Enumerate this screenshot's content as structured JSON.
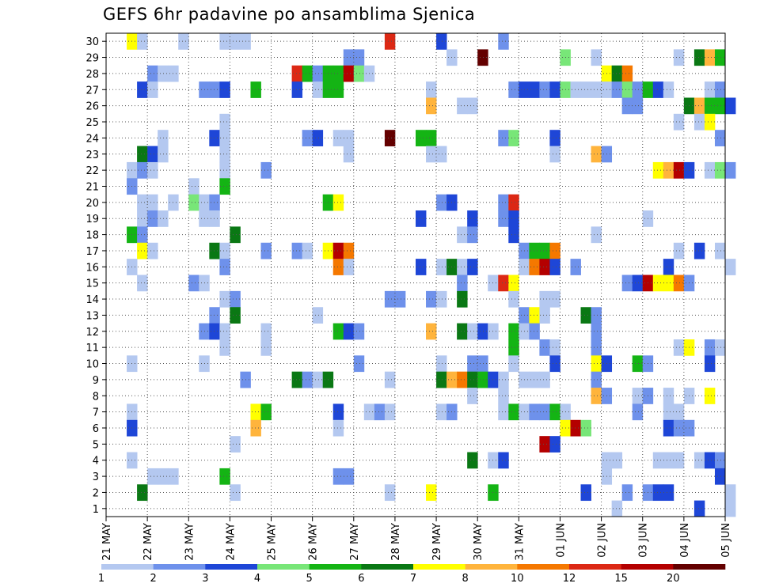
{
  "chart_data": {
    "type": "heatmap",
    "title": "GEFS 6hr padavine po ansamblima Sjenica",
    "xlabel": "",
    "ylabel": "",
    "x_ticks": [
      "21 MAY",
      "22 MAY",
      "23 MAY",
      "24 MAY",
      "25 MAY",
      "26 MAY",
      "27 MAY",
      "28 MAY",
      "29 MAY",
      "30 MAY",
      "31 MAY",
      "01 JUN",
      "02 JUN",
      "03 JUN",
      "04 JUN",
      "05 JUN"
    ],
    "y_ticks": [
      1,
      2,
      3,
      4,
      5,
      6,
      7,
      8,
      9,
      10,
      11,
      12,
      13,
      14,
      15,
      16,
      17,
      18,
      19,
      20,
      21,
      22,
      23,
      24,
      25,
      26,
      27,
      28,
      29,
      30
    ],
    "x_range_days": [
      0,
      15
    ],
    "y_range": [
      0,
      30
    ],
    "grid": true,
    "legend": {
      "placement": "bottom",
      "labels": [
        "1",
        "2",
        "3",
        "4",
        "5",
        "6",
        "7",
        "8",
        "10",
        "12",
        "15",
        "20"
      ],
      "colors": [
        "#b4c8f0",
        "#6e91eb",
        "#1e46d7",
        "#78e678",
        "#14b414",
        "#0a7814",
        "#ffff00",
        "#ffb43c",
        "#f57800",
        "#dc2814",
        "#b40000",
        "#640000"
      ]
    },
    "cells_note": "each cell: [member, lead_step_6h (step 0 = 21 MAY 00Z), color_class (0-11, per legend)]",
    "cells": [
      [
        30,
        2,
        6
      ],
      [
        30,
        3,
        0
      ],
      [
        30,
        7,
        0
      ],
      [
        30,
        11,
        0
      ],
      [
        30,
        12,
        0
      ],
      [
        30,
        13,
        0
      ],
      [
        30,
        27,
        9
      ],
      [
        30,
        32,
        2
      ],
      [
        30,
        38,
        1
      ],
      [
        29,
        23,
        1
      ],
      [
        29,
        24,
        1
      ],
      [
        29,
        33,
        0
      ],
      [
        29,
        36,
        11
      ],
      [
        29,
        44,
        3
      ],
      [
        29,
        47,
        0
      ],
      [
        29,
        55,
        0
      ],
      [
        29,
        57,
        5
      ],
      [
        29,
        58,
        7
      ],
      [
        29,
        59,
        4
      ],
      [
        28,
        4,
        1
      ],
      [
        28,
        5,
        0
      ],
      [
        28,
        6,
        0
      ],
      [
        28,
        18,
        9
      ],
      [
        28,
        19,
        4
      ],
      [
        28,
        20,
        1
      ],
      [
        28,
        21,
        4
      ],
      [
        28,
        22,
        4
      ],
      [
        28,
        23,
        10
      ],
      [
        28,
        24,
        3
      ],
      [
        28,
        25,
        0
      ],
      [
        28,
        48,
        6
      ],
      [
        28,
        49,
        5
      ],
      [
        28,
        50,
        8
      ],
      [
        27,
        3,
        2
      ],
      [
        27,
        4,
        0
      ],
      [
        27,
        9,
        1
      ],
      [
        27,
        10,
        1
      ],
      [
        27,
        11,
        2
      ],
      [
        27,
        14,
        4
      ],
      [
        27,
        18,
        2
      ],
      [
        27,
        20,
        0
      ],
      [
        27,
        21,
        4
      ],
      [
        27,
        22,
        4
      ],
      [
        27,
        31,
        0
      ],
      [
        27,
        39,
        1
      ],
      [
        27,
        40,
        2
      ],
      [
        27,
        41,
        2
      ],
      [
        27,
        42,
        1
      ],
      [
        27,
        43,
        2
      ],
      [
        27,
        44,
        3
      ],
      [
        27,
        45,
        0
      ],
      [
        27,
        46,
        0
      ],
      [
        27,
        47,
        0
      ],
      [
        27,
        48,
        0
      ],
      [
        27,
        49,
        1
      ],
      [
        27,
        50,
        3
      ],
      [
        27,
        51,
        1
      ],
      [
        27,
        52,
        4
      ],
      [
        27,
        53,
        2
      ],
      [
        27,
        54,
        0
      ],
      [
        27,
        58,
        0
      ],
      [
        27,
        59,
        1
      ],
      [
        26,
        31,
        7
      ],
      [
        26,
        34,
        0
      ],
      [
        26,
        35,
        0
      ],
      [
        26,
        50,
        1
      ],
      [
        26,
        51,
        1
      ],
      [
        26,
        56,
        5
      ],
      [
        26,
        57,
        7
      ],
      [
        26,
        58,
        4
      ],
      [
        26,
        59,
        4
      ],
      [
        26,
        60,
        2
      ],
      [
        25,
        11,
        0
      ],
      [
        25,
        55,
        0
      ],
      [
        25,
        57,
        0
      ],
      [
        25,
        58,
        6
      ],
      [
        24,
        5,
        0
      ],
      [
        24,
        10,
        2
      ],
      [
        24,
        11,
        0
      ],
      [
        24,
        19,
        1
      ],
      [
        24,
        20,
        2
      ],
      [
        24,
        22,
        0
      ],
      [
        24,
        23,
        0
      ],
      [
        24,
        27,
        11
      ],
      [
        24,
        30,
        4
      ],
      [
        24,
        31,
        4
      ],
      [
        24,
        38,
        1
      ],
      [
        24,
        39,
        3
      ],
      [
        24,
        43,
        2
      ],
      [
        24,
        59,
        1
      ],
      [
        23,
        3,
        5
      ],
      [
        23,
        4,
        2
      ],
      [
        23,
        5,
        0
      ],
      [
        23,
        11,
        0
      ],
      [
        23,
        23,
        0
      ],
      [
        23,
        31,
        0
      ],
      [
        23,
        32,
        0
      ],
      [
        23,
        43,
        0
      ],
      [
        23,
        47,
        7
      ],
      [
        23,
        48,
        1
      ],
      [
        22,
        2,
        0
      ],
      [
        22,
        3,
        1
      ],
      [
        22,
        4,
        0
      ],
      [
        22,
        11,
        0
      ],
      [
        22,
        15,
        1
      ],
      [
        22,
        53,
        6
      ],
      [
        22,
        54,
        7
      ],
      [
        22,
        55,
        10
      ],
      [
        22,
        56,
        2
      ],
      [
        22,
        58,
        0
      ],
      [
        22,
        59,
        3
      ],
      [
        22,
        60,
        1
      ],
      [
        21,
        2,
        1
      ],
      [
        21,
        8,
        0
      ],
      [
        21,
        11,
        4
      ],
      [
        20,
        3,
        0
      ],
      [
        20,
        4,
        0
      ],
      [
        20,
        6,
        0
      ],
      [
        20,
        8,
        3
      ],
      [
        20,
        9,
        0
      ],
      [
        20,
        10,
        1
      ],
      [
        20,
        21,
        4
      ],
      [
        20,
        22,
        6
      ],
      [
        20,
        32,
        1
      ],
      [
        20,
        33,
        2
      ],
      [
        20,
        38,
        1
      ],
      [
        20,
        39,
        9
      ],
      [
        19,
        3,
        0
      ],
      [
        19,
        4,
        1
      ],
      [
        19,
        5,
        0
      ],
      [
        19,
        9,
        0
      ],
      [
        19,
        10,
        0
      ],
      [
        19,
        30,
        2
      ],
      [
        19,
        35,
        2
      ],
      [
        19,
        38,
        1
      ],
      [
        19,
        39,
        2
      ],
      [
        19,
        52,
        0
      ],
      [
        18,
        2,
        4
      ],
      [
        18,
        3,
        1
      ],
      [
        18,
        12,
        5
      ],
      [
        18,
        34,
        0
      ],
      [
        18,
        35,
        1
      ],
      [
        18,
        39,
        2
      ],
      [
        18,
        47,
        0
      ],
      [
        17,
        3,
        6
      ],
      [
        17,
        4,
        0
      ],
      [
        17,
        10,
        5
      ],
      [
        17,
        11,
        0
      ],
      [
        17,
        15,
        1
      ],
      [
        17,
        18,
        1
      ],
      [
        17,
        19,
        0
      ],
      [
        17,
        21,
        6
      ],
      [
        17,
        22,
        10
      ],
      [
        17,
        23,
        8
      ],
      [
        17,
        40,
        1
      ],
      [
        17,
        41,
        4
      ],
      [
        17,
        42,
        4
      ],
      [
        17,
        43,
        8
      ],
      [
        17,
        55,
        0
      ],
      [
        17,
        57,
        2
      ],
      [
        17,
        59,
        0
      ],
      [
        16,
        2,
        0
      ],
      [
        16,
        11,
        1
      ],
      [
        16,
        22,
        8
      ],
      [
        16,
        23,
        0
      ],
      [
        16,
        30,
        2
      ],
      [
        16,
        32,
        0
      ],
      [
        16,
        33,
        5
      ],
      [
        16,
        34,
        0
      ],
      [
        16,
        35,
        2
      ],
      [
        16,
        40,
        0
      ],
      [
        16,
        41,
        8
      ],
      [
        16,
        42,
        10
      ],
      [
        16,
        43,
        2
      ],
      [
        16,
        45,
        1
      ],
      [
        16,
        54,
        2
      ],
      [
        16,
        60,
        0
      ],
      [
        15,
        3,
        0
      ],
      [
        15,
        8,
        1
      ],
      [
        15,
        9,
        0
      ],
      [
        15,
        34,
        1
      ],
      [
        15,
        37,
        0
      ],
      [
        15,
        38,
        9
      ],
      [
        15,
        39,
        6
      ],
      [
        15,
        50,
        1
      ],
      [
        15,
        51,
        2
      ],
      [
        15,
        52,
        10
      ],
      [
        15,
        53,
        6
      ],
      [
        15,
        54,
        6
      ],
      [
        15,
        55,
        8
      ],
      [
        15,
        56,
        1
      ],
      [
        14,
        11,
        0
      ],
      [
        14,
        12,
        1
      ],
      [
        14,
        27,
        1
      ],
      [
        14,
        28,
        1
      ],
      [
        14,
        31,
        1
      ],
      [
        14,
        32,
        0
      ],
      [
        14,
        34,
        5
      ],
      [
        14,
        39,
        0
      ],
      [
        14,
        42,
        0
      ],
      [
        14,
        43,
        0
      ],
      [
        13,
        10,
        1
      ],
      [
        13,
        12,
        5
      ],
      [
        13,
        20,
        0
      ],
      [
        13,
        40,
        1
      ],
      [
        13,
        41,
        6
      ],
      [
        13,
        42,
        0
      ],
      [
        13,
        46,
        5
      ],
      [
        13,
        47,
        1
      ],
      [
        12,
        9,
        1
      ],
      [
        12,
        10,
        2
      ],
      [
        12,
        11,
        0
      ],
      [
        12,
        15,
        0
      ],
      [
        12,
        22,
        4
      ],
      [
        12,
        23,
        2
      ],
      [
        12,
        24,
        1
      ],
      [
        12,
        31,
        7
      ],
      [
        12,
        34,
        5
      ],
      [
        12,
        35,
        0
      ],
      [
        12,
        36,
        2
      ],
      [
        12,
        37,
        0
      ],
      [
        12,
        39,
        4
      ],
      [
        12,
        40,
        0
      ],
      [
        12,
        41,
        1
      ],
      [
        12,
        47,
        1
      ],
      [
        11,
        11,
        0
      ],
      [
        11,
        15,
        0
      ],
      [
        11,
        39,
        4
      ],
      [
        11,
        42,
        1
      ],
      [
        11,
        43,
        0
      ],
      [
        11,
        47,
        1
      ],
      [
        11,
        55,
        0
      ],
      [
        11,
        56,
        6
      ],
      [
        11,
        58,
        1
      ],
      [
        11,
        59,
        0
      ],
      [
        10,
        2,
        0
      ],
      [
        10,
        9,
        0
      ],
      [
        10,
        24,
        1
      ],
      [
        10,
        32,
        0
      ],
      [
        10,
        35,
        1
      ],
      [
        10,
        36,
        1
      ],
      [
        10,
        39,
        0
      ],
      [
        10,
        43,
        2
      ],
      [
        10,
        47,
        6
      ],
      [
        10,
        48,
        2
      ],
      [
        10,
        51,
        4
      ],
      [
        10,
        52,
        1
      ],
      [
        10,
        58,
        2
      ],
      [
        9,
        13,
        1
      ],
      [
        9,
        18,
        5
      ],
      [
        9,
        19,
        1
      ],
      [
        9,
        20,
        0
      ],
      [
        9,
        21,
        5
      ],
      [
        9,
        27,
        0
      ],
      [
        9,
        32,
        5
      ],
      [
        9,
        33,
        7
      ],
      [
        9,
        34,
        8
      ],
      [
        9,
        35,
        5
      ],
      [
        9,
        36,
        4
      ],
      [
        9,
        37,
        2
      ],
      [
        9,
        38,
        0
      ],
      [
        9,
        40,
        0
      ],
      [
        9,
        41,
        0
      ],
      [
        9,
        42,
        0
      ],
      [
        9,
        47,
        1
      ],
      [
        8,
        35,
        0
      ],
      [
        8,
        38,
        0
      ],
      [
        8,
        47,
        7
      ],
      [
        8,
        48,
        1
      ],
      [
        8,
        51,
        0
      ],
      [
        8,
        52,
        1
      ],
      [
        8,
        54,
        0
      ],
      [
        8,
        56,
        0
      ],
      [
        8,
        58,
        6
      ],
      [
        7,
        2,
        0
      ],
      [
        7,
        14,
        6
      ],
      [
        7,
        15,
        4
      ],
      [
        7,
        22,
        2
      ],
      [
        7,
        25,
        0
      ],
      [
        7,
        26,
        1
      ],
      [
        7,
        27,
        0
      ],
      [
        7,
        32,
        0
      ],
      [
        7,
        33,
        1
      ],
      [
        7,
        38,
        0
      ],
      [
        7,
        39,
        4
      ],
      [
        7,
        40,
        0
      ],
      [
        7,
        41,
        1
      ],
      [
        7,
        42,
        1
      ],
      [
        7,
        43,
        4
      ],
      [
        7,
        44,
        0
      ],
      [
        7,
        51,
        1
      ],
      [
        7,
        54,
        0
      ],
      [
        7,
        55,
        0
      ],
      [
        6,
        2,
        2
      ],
      [
        6,
        14,
        7
      ],
      [
        6,
        22,
        0
      ],
      [
        6,
        44,
        6
      ],
      [
        6,
        45,
        10
      ],
      [
        6,
        46,
        3
      ],
      [
        6,
        54,
        2
      ],
      [
        6,
        55,
        1
      ],
      [
        6,
        56,
        1
      ],
      [
        5,
        12,
        0
      ],
      [
        5,
        42,
        10
      ],
      [
        5,
        43,
        2
      ],
      [
        4,
        2,
        0
      ],
      [
        4,
        35,
        5
      ],
      [
        4,
        37,
        0
      ],
      [
        4,
        38,
        2
      ],
      [
        4,
        48,
        0
      ],
      [
        4,
        49,
        0
      ],
      [
        4,
        53,
        0
      ],
      [
        4,
        54,
        0
      ],
      [
        4,
        55,
        0
      ],
      [
        4,
        57,
        0
      ],
      [
        4,
        58,
        2
      ],
      [
        4,
        59,
        1
      ],
      [
        3,
        4,
        0
      ],
      [
        3,
        5,
        0
      ],
      [
        3,
        6,
        0
      ],
      [
        3,
        11,
        4
      ],
      [
        3,
        22,
        1
      ],
      [
        3,
        23,
        1
      ],
      [
        3,
        48,
        0
      ],
      [
        3,
        59,
        2
      ],
      [
        2,
        3,
        5
      ],
      [
        2,
        12,
        0
      ],
      [
        2,
        27,
        0
      ],
      [
        2,
        31,
        6
      ],
      [
        2,
        37,
        4
      ],
      [
        2,
        46,
        2
      ],
      [
        2,
        50,
        1
      ],
      [
        2,
        52,
        1
      ],
      [
        2,
        53,
        2
      ],
      [
        2,
        54,
        2
      ],
      [
        2,
        60,
        0
      ],
      [
        1,
        49,
        0
      ],
      [
        1,
        57,
        2
      ],
      [
        1,
        60,
        0
      ]
    ]
  }
}
